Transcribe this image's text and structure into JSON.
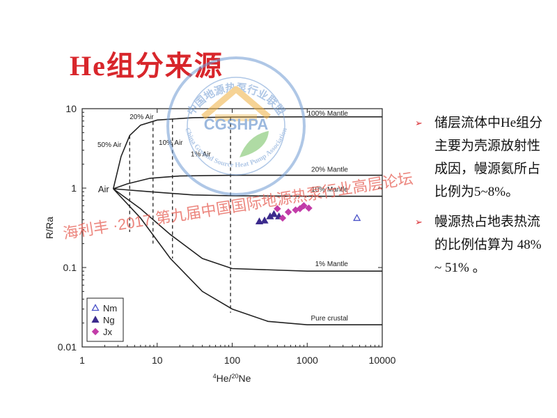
{
  "slide": {
    "title": "He组分来源",
    "bullets": [
      "储层流体中He组分主要为壳源放射性成因，幔源氦所占比例为5~8%。",
      "幔源热占地表热流的比例估算为 48% ~ 51% 。"
    ],
    "watermark": "海利丰 ·2017  第九届中国国际地源热泵行业高层论坛",
    "seal": {
      "cn": "中国地源热泵行业联盟",
      "abbr": "CGSHPA",
      "en": "China Ground Source Heat Pump Association"
    }
  },
  "colors": {
    "title": "#d8262b",
    "curve": "#222222",
    "ng": "#3b2a8c",
    "nm": "#4a52c8",
    "jx": "#c23ca8",
    "seal": "#6f9ad2"
  },
  "chart_data": {
    "type": "line",
    "xscale": "log",
    "yscale": "log",
    "xlim": [
      1,
      10000
    ],
    "ylim": [
      0.01,
      10
    ],
    "xlabel": "4He/20Ne",
    "ylabel": "R/Ra",
    "xticks": [
      "1",
      "10",
      "100",
      "1000",
      "10000"
    ],
    "yticks": [
      "10",
      "1",
      "0.1",
      "0.01"
    ],
    "air_point": {
      "label": "Air",
      "x": 2.6,
      "y": 0.98
    },
    "mixing_curves": [
      {
        "label": "100% Mantle",
        "label_x": 3500,
        "label_y": 8.2,
        "points": [
          [
            2.6,
            0.98
          ],
          [
            3.3,
            2.5
          ],
          [
            4.3,
            4.6
          ],
          [
            6,
            6.2
          ],
          [
            10,
            7.2
          ],
          [
            30,
            7.7
          ],
          [
            100,
            7.85
          ],
          [
            1000,
            7.9
          ],
          [
            10000,
            7.9
          ]
        ]
      },
      {
        "label": "20% Mantle",
        "label_x": 3500,
        "label_y": 1.6,
        "points": [
          [
            2.6,
            0.98
          ],
          [
            4,
            1.13
          ],
          [
            8,
            1.33
          ],
          [
            20,
            1.42
          ],
          [
            100,
            1.45
          ],
          [
            1000,
            1.45
          ],
          [
            10000,
            1.45
          ]
        ]
      },
      {
        "label": "10% Mantle",
        "label_x": 3500,
        "label_y": 0.9,
        "points": [
          [
            2.6,
            0.98
          ],
          [
            8,
            0.9
          ],
          [
            30,
            0.82
          ],
          [
            100,
            0.8
          ],
          [
            1000,
            0.79
          ],
          [
            10000,
            0.79
          ]
        ]
      },
      {
        "label": "1% Mantle",
        "label_x": 3500,
        "label_y": 0.104,
        "points": [
          [
            2.6,
            0.98
          ],
          [
            6,
            0.55
          ],
          [
            15,
            0.26
          ],
          [
            40,
            0.13
          ],
          [
            100,
            0.097
          ],
          [
            1000,
            0.09
          ],
          [
            10000,
            0.09
          ]
        ]
      },
      {
        "label": "Pure crustal",
        "label_x": 3500,
        "label_y": 0.0215,
        "points": [
          [
            2.6,
            0.98
          ],
          [
            6,
            0.42
          ],
          [
            15,
            0.13
          ],
          [
            40,
            0.05
          ],
          [
            100,
            0.03
          ],
          [
            300,
            0.021
          ],
          [
            1000,
            0.019
          ],
          [
            10000,
            0.019
          ]
        ]
      }
    ],
    "air_mixing_lines": [
      {
        "label": "50% Air",
        "x": 4.3,
        "y_top": 4.6,
        "y_bottom": 0.28,
        "label_x": 1.6,
        "label_y": 3.3
      },
      {
        "label": "20% Air",
        "x": 8.8,
        "y_top": 6.9,
        "y_bottom": 0.2,
        "label_x": 4.3,
        "label_y": 7.4
      },
      {
        "label": "10% Air",
        "x": 16,
        "y_top": 7.5,
        "y_bottom": 0.13,
        "label_x": 10.5,
        "label_y": 3.5
      },
      {
        "label": "1% Air",
        "x": 95,
        "y_top": 7.8,
        "y_bottom": 0.027,
        "label_x": 28,
        "label_y": 2.5
      }
    ],
    "series": [
      {
        "name": "Nm",
        "marker": "triangle-open",
        "points": [
          [
            4600,
            0.42
          ]
        ]
      },
      {
        "name": "Ng",
        "marker": "triangle-filled",
        "points": [
          [
            230,
            0.38
          ],
          [
            270,
            0.39
          ],
          [
            320,
            0.44
          ],
          [
            360,
            0.47
          ],
          [
            420,
            0.44
          ]
        ]
      },
      {
        "name": "Jx",
        "marker": "diamond",
        "points": [
          [
            400,
            0.55
          ],
          [
            470,
            0.42
          ],
          [
            560,
            0.5
          ],
          [
            700,
            0.53
          ],
          [
            800,
            0.55
          ],
          [
            900,
            0.6
          ],
          [
            1050,
            0.56
          ]
        ]
      }
    ],
    "legend": {
      "position": "bottom-left"
    }
  }
}
